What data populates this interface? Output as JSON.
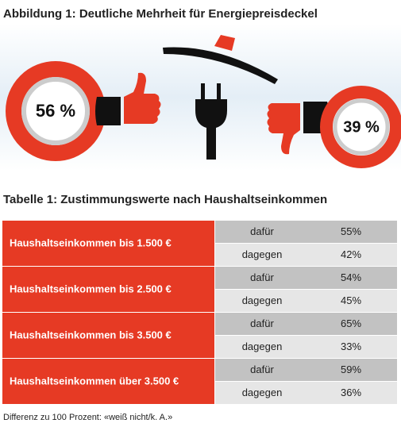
{
  "figure": {
    "title": "Abbildung 1: Deutliche Mehrheit für Energiepreisdeckel",
    "approval": "56 %",
    "rejection": "39 %"
  },
  "table": {
    "title": "Tabelle 1: Zustimmungswerte nach Haushaltseinkommen",
    "rows": [
      {
        "group": "Haushaltseinkommen bis 1.500 €",
        "for_label": "dafür",
        "for_value": "55%",
        "against_label": "dagegen",
        "against_value": "42%"
      },
      {
        "group": "Haushaltseinkommen bis 2.500 €",
        "for_label": "dafür",
        "for_value": "54%",
        "against_label": "dagegen",
        "against_value": "45%"
      },
      {
        "group": "Haushaltseinkommen bis 3.500 €",
        "for_label": "dafür",
        "for_value": "65%",
        "against_label": "dagegen",
        "against_value": "33%"
      },
      {
        "group": "Haushaltseinkommen über 3.500 €",
        "for_label": "dafür",
        "for_value": "59%",
        "against_label": "dagegen",
        "against_value": "36%"
      }
    ]
  },
  "footnote": "Differenz zu 100 Prozent: «weiß nicht/k. A.»"
}
